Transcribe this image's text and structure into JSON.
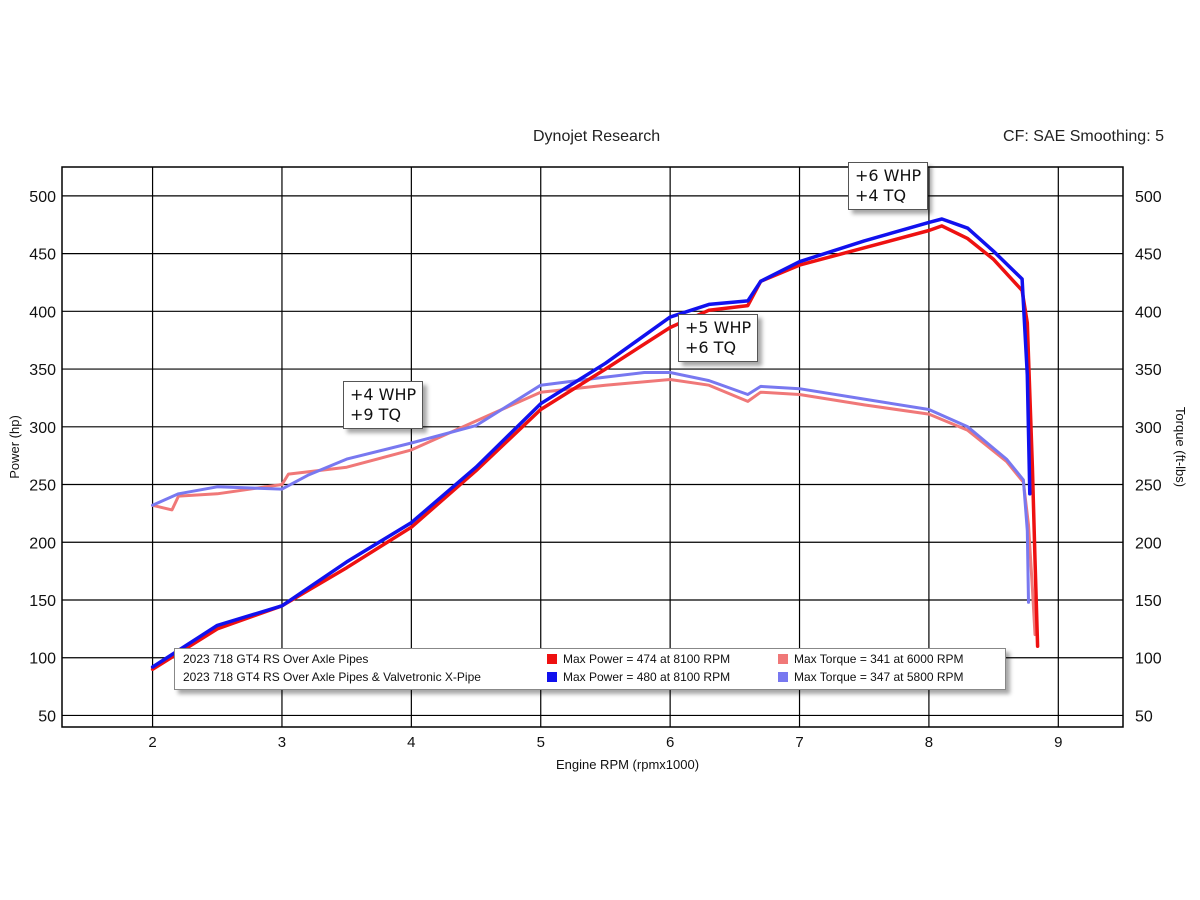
{
  "header": {
    "left_text": "Dynojet Research",
    "right_text": "CF: SAE Smoothing: 5"
  },
  "callouts": [
    {
      "line1": "+4 WHP",
      "line2": "+9 TQ"
    },
    {
      "line1": "+5 WHP",
      "line2": "+6 TQ"
    },
    {
      "line1": "+6 WHP",
      "line2": "+4 TQ"
    }
  ],
  "legend": {
    "run1": "2023 718 GT4 RS Over Axle Pipes",
    "run2": "2023 718 GT4 RS Over Axle Pipes & Valvetronic X-Pipe",
    "power1": "Max Power = 474 at 8100 RPM",
    "power2": "Max Power = 480 at 8100 RPM",
    "torque1": "Max Torque = 341 at 6000 RPM",
    "torque2": "Max Torque = 347 at 5800 RPM"
  },
  "colors": {
    "power_run1": "#ee1111",
    "power_run2": "#1111ee",
    "torque_run1": "#f07878",
    "torque_run2": "#7878f0"
  },
  "chart_data": {
    "type": "line",
    "xlabel": "Engine RPM (rpmx1000)",
    "ylabel_left": "Power (hp)",
    "ylabel_right": "Torque (ft-lbs)",
    "xlim": [
      1.3,
      9.5
    ],
    "ylim": [
      40,
      525
    ],
    "x_ticks": [
      2,
      3,
      4,
      5,
      6,
      7,
      8,
      9
    ],
    "y_ticks": [
      50,
      100,
      150,
      200,
      250,
      300,
      350,
      400,
      450,
      500
    ],
    "grid": true,
    "series": [
      {
        "name": "Max Power = 474 at 8100 RPM",
        "axis": "power",
        "color": "#ee1111",
        "points": [
          [
            2.0,
            90
          ],
          [
            2.5,
            125
          ],
          [
            3.0,
            145
          ],
          [
            3.5,
            178
          ],
          [
            4.0,
            213
          ],
          [
            4.5,
            262
          ],
          [
            5.0,
            315
          ],
          [
            5.5,
            350
          ],
          [
            6.0,
            386
          ],
          [
            6.3,
            401
          ],
          [
            6.6,
            405
          ],
          [
            6.7,
            426
          ],
          [
            7.0,
            440
          ],
          [
            7.5,
            455
          ],
          [
            8.0,
            470
          ],
          [
            8.1,
            474
          ],
          [
            8.3,
            463
          ],
          [
            8.5,
            445
          ],
          [
            8.72,
            418
          ],
          [
            8.76,
            390
          ],
          [
            8.8,
            265
          ],
          [
            8.82,
            185
          ],
          [
            8.84,
            110
          ]
        ]
      },
      {
        "name": "Max Power = 480 at 8100 RPM",
        "axis": "power",
        "color": "#1111ee",
        "points": [
          [
            2.0,
            92
          ],
          [
            2.5,
            128
          ],
          [
            3.0,
            145
          ],
          [
            3.5,
            183
          ],
          [
            4.0,
            217
          ],
          [
            4.5,
            265
          ],
          [
            5.0,
            320
          ],
          [
            5.5,
            355
          ],
          [
            6.0,
            395
          ],
          [
            6.3,
            406
          ],
          [
            6.6,
            409
          ],
          [
            6.7,
            426
          ],
          [
            7.0,
            443
          ],
          [
            7.5,
            461
          ],
          [
            8.0,
            477
          ],
          [
            8.1,
            480
          ],
          [
            8.3,
            472
          ],
          [
            8.5,
            452
          ],
          [
            8.72,
            428
          ],
          [
            8.76,
            345
          ],
          [
            8.78,
            242
          ]
        ]
      },
      {
        "name": "Max Torque = 341 at 6000 RPM",
        "axis": "torque",
        "color": "#f07878",
        "points": [
          [
            2.0,
            232
          ],
          [
            2.15,
            228
          ],
          [
            2.2,
            240
          ],
          [
            2.5,
            242
          ],
          [
            3.0,
            250
          ],
          [
            3.05,
            259
          ],
          [
            3.5,
            265
          ],
          [
            4.0,
            280
          ],
          [
            4.5,
            305
          ],
          [
            5.0,
            330
          ],
          [
            5.5,
            336
          ],
          [
            6.0,
            341
          ],
          [
            6.3,
            336
          ],
          [
            6.6,
            322
          ],
          [
            6.7,
            330
          ],
          [
            7.0,
            328
          ],
          [
            7.5,
            319
          ],
          [
            8.0,
            311
          ],
          [
            8.3,
            297
          ],
          [
            8.6,
            270
          ],
          [
            8.73,
            252
          ],
          [
            8.77,
            215
          ],
          [
            8.8,
            160
          ],
          [
            8.82,
            120
          ]
        ]
      },
      {
        "name": "Max Torque = 347 at 5800 RPM",
        "axis": "torque",
        "color": "#7878f0",
        "points": [
          [
            2.0,
            232
          ],
          [
            2.1,
            237
          ],
          [
            2.2,
            242
          ],
          [
            2.5,
            248
          ],
          [
            3.0,
            246
          ],
          [
            3.2,
            258
          ],
          [
            3.5,
            272
          ],
          [
            4.0,
            286
          ],
          [
            4.5,
            301
          ],
          [
            5.0,
            336
          ],
          [
            5.5,
            343
          ],
          [
            5.8,
            347
          ],
          [
            6.0,
            347
          ],
          [
            6.3,
            340
          ],
          [
            6.6,
            328
          ],
          [
            6.7,
            335
          ],
          [
            7.0,
            333
          ],
          [
            7.5,
            324
          ],
          [
            8.0,
            315
          ],
          [
            8.3,
            300
          ],
          [
            8.6,
            272
          ],
          [
            8.73,
            254
          ],
          [
            8.76,
            210
          ],
          [
            8.77,
            148
          ]
        ]
      }
    ]
  }
}
